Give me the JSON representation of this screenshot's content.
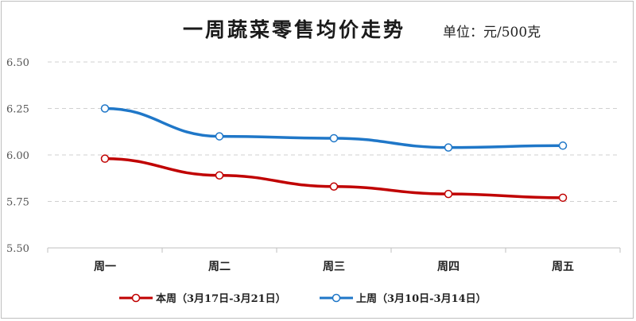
{
  "chart_data": {
    "type": "line",
    "title": "一周蔬菜零售均价走势",
    "unit_label": "单位：元/500克",
    "categories": [
      "周一",
      "周二",
      "周三",
      "周四",
      "周五"
    ],
    "ylim": [
      5.5,
      6.5
    ],
    "yticks": [
      "5.50",
      "5.75",
      "6.00",
      "6.25",
      "6.50"
    ],
    "grid": true,
    "legend_position": "bottom",
    "series": [
      {
        "name": "本周（3月17日-3月21日）",
        "color": "#c00000",
        "values": [
          5.98,
          5.89,
          5.83,
          5.79,
          5.77
        ]
      },
      {
        "name": "上周（3月10日-3月14日）",
        "color": "#1f77c8",
        "values": [
          6.25,
          6.1,
          6.09,
          6.04,
          6.05
        ]
      }
    ]
  }
}
